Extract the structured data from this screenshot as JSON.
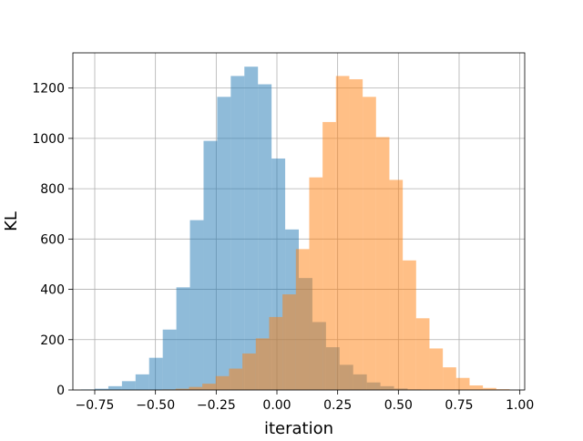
{
  "chart_data": {
    "type": "bar",
    "title": "",
    "xlabel": "iteration",
    "ylabel": "KL",
    "xlim": [
      -0.84,
      1.02
    ],
    "ylim": [
      0,
      1340
    ],
    "grid": true,
    "legend": "none",
    "x_ticks": [
      -0.75,
      -0.5,
      -0.25,
      0.0,
      0.25,
      0.5,
      0.75,
      1.0
    ],
    "x_tick_labels": [
      "−0.75",
      "−0.50",
      "−0.25",
      "0.00",
      "0.25",
      "0.50",
      "0.75",
      "1.00"
    ],
    "y_ticks": [
      0,
      200,
      400,
      600,
      800,
      1000,
      1200
    ],
    "y_tick_labels": [
      "0",
      "200",
      "400",
      "600",
      "800",
      "1000",
      "1200"
    ],
    "series": [
      {
        "color": "#1f77b4",
        "alpha": 0.5,
        "bin_edges": [
          -0.806,
          -0.75,
          -0.694,
          -0.638,
          -0.582,
          -0.526,
          -0.47,
          -0.414,
          -0.358,
          -0.302,
          -0.246,
          -0.19,
          -0.134,
          -0.078,
          -0.022,
          0.034,
          0.09,
          0.146,
          0.202,
          0.258,
          0.314,
          0.37,
          0.426,
          0.482,
          0.538,
          0.594
        ],
        "counts": [
          2,
          5,
          15,
          35,
          62,
          128,
          240,
          408,
          675,
          990,
          1165,
          1248,
          1285,
          1215,
          920,
          638,
          445,
          270,
          170,
          100,
          62,
          30,
          15,
          6,
          2
        ]
      },
      {
        "color": "#ff7f0e",
        "alpha": 0.5,
        "bin_edges": [
          -0.472,
          -0.417,
          -0.362,
          -0.307,
          -0.252,
          -0.197,
          -0.142,
          -0.087,
          -0.032,
          0.023,
          0.078,
          0.133,
          0.188,
          0.243,
          0.298,
          0.353,
          0.408,
          0.463,
          0.518,
          0.573,
          0.628,
          0.683,
          0.738,
          0.793,
          0.848,
          0.903,
          0.958
        ],
        "counts": [
          2,
          5,
          12,
          25,
          55,
          85,
          145,
          205,
          290,
          380,
          560,
          845,
          1065,
          1248,
          1235,
          1165,
          1005,
          835,
          515,
          285,
          165,
          90,
          48,
          18,
          8,
          3
        ]
      }
    ]
  }
}
